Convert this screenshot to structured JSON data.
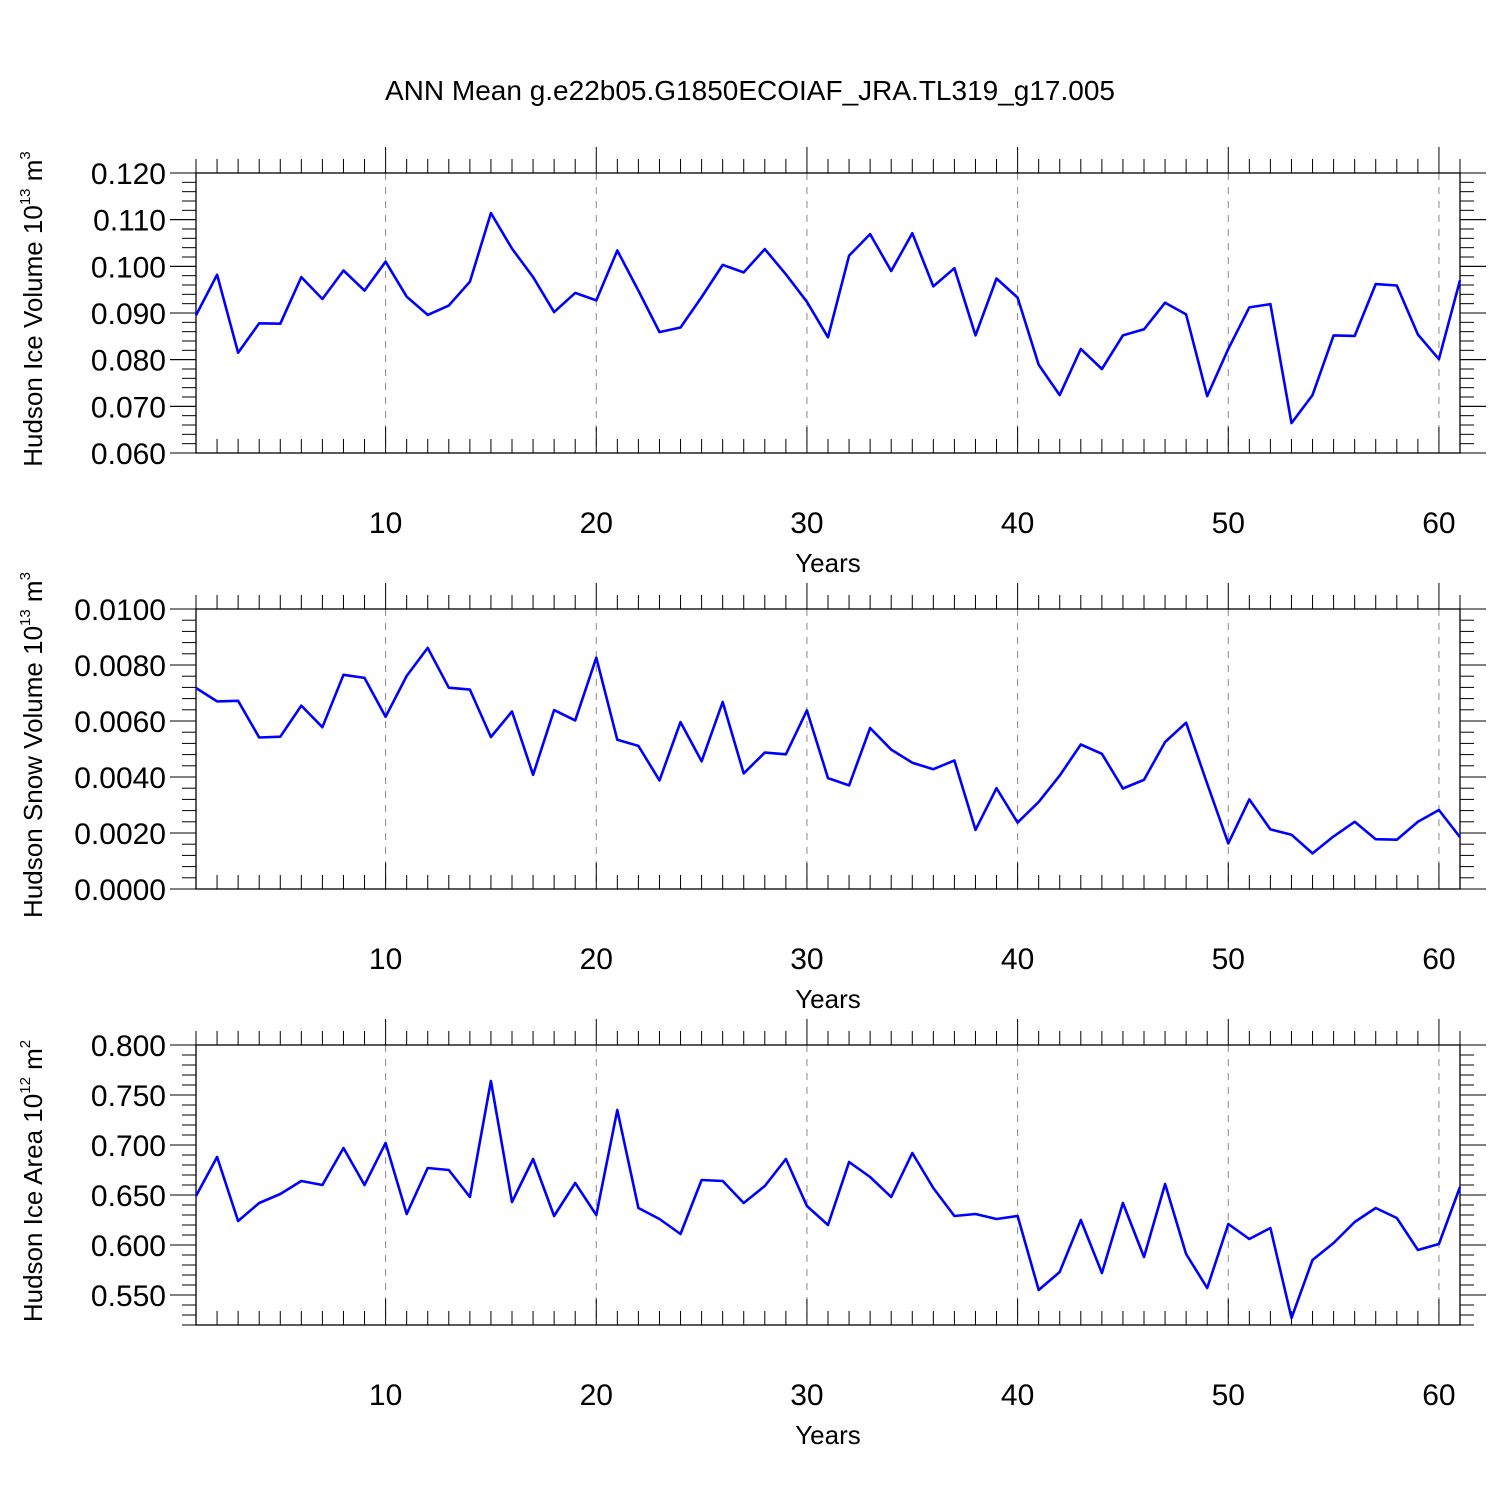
{
  "title": "ANN Mean g.e22b05.G1850ECOIAF_JRA.TL319_g17.005",
  "colors": {
    "line": "#0000ff",
    "grid": "#888888",
    "axes": "#000000"
  },
  "chart_data": [
    {
      "type": "line",
      "ylabel": {
        "text": "Hudson Ice Volume 10",
        "sup": "13",
        "unit": " m",
        "unit_sup": "3"
      },
      "xlabel": "Years",
      "xlim": [
        1,
        61
      ],
      "ylim": [
        0.06,
        0.12
      ],
      "xticks": [
        10,
        20,
        30,
        40,
        50,
        60
      ],
      "yticks": [
        "0.060",
        "0.070",
        "0.080",
        "0.090",
        "0.100",
        "0.110",
        "0.120"
      ],
      "x_start": 1,
      "values": [
        0.0895,
        0.0982,
        0.0815,
        0.0878,
        0.0877,
        0.0977,
        0.093,
        0.0991,
        0.0948,
        0.101,
        0.0935,
        0.0896,
        0.0916,
        0.0967,
        0.1114,
        0.1038,
        0.0977,
        0.0902,
        0.0943,
        0.0927,
        0.1034,
        0.0948,
        0.0859,
        0.0869,
        0.0934,
        0.1003,
        0.0987,
        0.1037,
        0.0983,
        0.0924,
        0.0848,
        0.1023,
        0.1069,
        0.099,
        0.1071,
        0.0957,
        0.0996,
        0.0852,
        0.0974,
        0.0933,
        0.0789,
        0.0724,
        0.0823,
        0.078,
        0.0852,
        0.0865,
        0.0922,
        0.0897,
        0.0722,
        0.0823,
        0.0912,
        0.0919,
        0.0664,
        0.0724,
        0.0852,
        0.0851,
        0.0962,
        0.0959,
        0.0854,
        0.0801,
        0.097
      ]
    },
    {
      "type": "line",
      "ylabel": {
        "text": "Hudson Snow Volume 10",
        "sup": "13",
        "unit": " m",
        "unit_sup": "3"
      },
      "xlabel": "Years",
      "xlim": [
        1,
        61
      ],
      "ylim": [
        0.0,
        0.01
      ],
      "xticks": [
        10,
        20,
        30,
        40,
        50,
        60
      ],
      "yticks": [
        "0.0000",
        "0.0020",
        "0.0040",
        "0.0060",
        "0.0080",
        "0.0100"
      ],
      "x_start": 1,
      "values": [
        0.00718,
        0.0067,
        0.00672,
        0.00541,
        0.00544,
        0.00655,
        0.00578,
        0.00765,
        0.00754,
        0.00615,
        0.00761,
        0.00861,
        0.00719,
        0.00712,
        0.00543,
        0.00634,
        0.00408,
        0.00639,
        0.00602,
        0.00826,
        0.00533,
        0.00511,
        0.00388,
        0.00596,
        0.00456,
        0.00668,
        0.00413,
        0.00487,
        0.00481,
        0.00638,
        0.00396,
        0.0037,
        0.00575,
        0.00498,
        0.00451,
        0.00428,
        0.00459,
        0.00211,
        0.0036,
        0.00237,
        0.00311,
        0.00405,
        0.00516,
        0.00483,
        0.00359,
        0.0039,
        0.00525,
        0.00594,
        0.00376,
        0.00163,
        0.0032,
        0.00213,
        0.00194,
        0.00127,
        0.00188,
        0.0024,
        0.00178,
        0.00176,
        0.0024,
        0.00282,
        0.00185
      ]
    },
    {
      "type": "line",
      "ylabel": {
        "text": "Hudson Ice Area 10",
        "sup": "12",
        "unit": " m",
        "unit_sup": "2"
      },
      "xlabel": "Years",
      "xlim": [
        1,
        61
      ],
      "ylim": [
        0.52,
        0.8
      ],
      "xticks": [
        10,
        20,
        30,
        40,
        50,
        60
      ],
      "yticks": [
        "0.550",
        "0.600",
        "0.650",
        "0.700",
        "0.750",
        "0.800"
      ],
      "x_start": 1,
      "values": [
        0.649,
        0.688,
        0.624,
        0.642,
        0.651,
        0.664,
        0.66,
        0.697,
        0.66,
        0.702,
        0.631,
        0.677,
        0.675,
        0.648,
        0.764,
        0.643,
        0.686,
        0.629,
        0.662,
        0.63,
        0.735,
        0.637,
        0.626,
        0.611,
        0.665,
        0.664,
        0.642,
        0.659,
        0.686,
        0.639,
        0.62,
        0.683,
        0.668,
        0.648,
        0.692,
        0.657,
        0.629,
        0.631,
        0.626,
        0.629,
        0.555,
        0.573,
        0.625,
        0.572,
        0.642,
        0.588,
        0.661,
        0.591,
        0.557,
        0.621,
        0.606,
        0.617,
        0.527,
        0.585,
        0.602,
        0.623,
        0.637,
        0.627,
        0.595,
        0.601,
        0.658
      ]
    }
  ]
}
